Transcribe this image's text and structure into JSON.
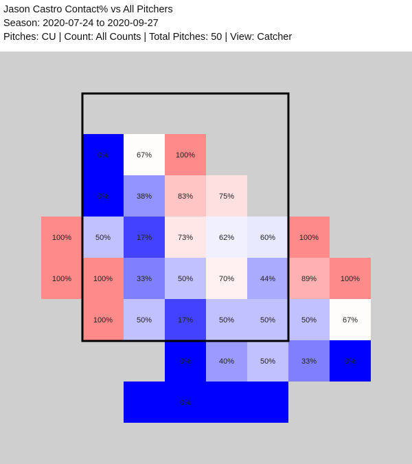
{
  "header": {
    "title": "Jason Castro Contact% vs All Pitchers",
    "season": "Season: 2020-07-24 to 2020-09-27",
    "filters": "Pitches: CU | Count: All Counts | Total Pitches: 50 | View: Catcher"
  },
  "colors": {
    "background": "#cfcfcf",
    "low": "#0000ff",
    "mid": "#ffffff",
    "high": "#ff8a8a",
    "strike_zone": "#000000"
  },
  "chart_data": {
    "type": "heatmap",
    "metric": "Contact%",
    "color_scale": "blue (low) - white - red (high)",
    "strike_zone": {
      "col_range": [
        1,
        6
      ],
      "row_range": [
        0,
        6
      ]
    },
    "cells": [
      {
        "row": 1,
        "col": 1,
        "value": 0,
        "label": "0%"
      },
      {
        "row": 1,
        "col": 2,
        "value": 67,
        "label": "67%"
      },
      {
        "row": 1,
        "col": 3,
        "value": 100,
        "label": "100%"
      },
      {
        "row": 2,
        "col": 1,
        "value": 0,
        "label": "0%"
      },
      {
        "row": 2,
        "col": 2,
        "value": 38,
        "label": "38%"
      },
      {
        "row": 2,
        "col": 3,
        "value": 83,
        "label": "83%"
      },
      {
        "row": 2,
        "col": 4,
        "value": 75,
        "label": "75%"
      },
      {
        "row": 3,
        "col": 0,
        "value": 100,
        "label": "100%"
      },
      {
        "row": 3,
        "col": 1,
        "value": 50,
        "label": "50%"
      },
      {
        "row": 3,
        "col": 2,
        "value": 17,
        "label": "17%"
      },
      {
        "row": 3,
        "col": 3,
        "value": 73,
        "label": "73%"
      },
      {
        "row": 3,
        "col": 4,
        "value": 62,
        "label": "62%"
      },
      {
        "row": 3,
        "col": 5,
        "value": 60,
        "label": "60%"
      },
      {
        "row": 3,
        "col": 6,
        "value": 100,
        "label": "100%"
      },
      {
        "row": 4,
        "col": 0,
        "value": 100,
        "label": "100%"
      },
      {
        "row": 4,
        "col": 1,
        "value": 100,
        "label": "100%"
      },
      {
        "row": 4,
        "col": 2,
        "value": 33,
        "label": "33%"
      },
      {
        "row": 4,
        "col": 3,
        "value": 50,
        "label": "50%"
      },
      {
        "row": 4,
        "col": 4,
        "value": 70,
        "label": "70%"
      },
      {
        "row": 4,
        "col": 5,
        "value": 44,
        "label": "44%"
      },
      {
        "row": 4,
        "col": 6,
        "value": 89,
        "label": "89%"
      },
      {
        "row": 4,
        "col": 7,
        "value": 100,
        "label": "100%"
      },
      {
        "row": 5,
        "col": 1,
        "value": 100,
        "label": "100%"
      },
      {
        "row": 5,
        "col": 2,
        "value": 50,
        "label": "50%"
      },
      {
        "row": 5,
        "col": 3,
        "value": 17,
        "label": "17%"
      },
      {
        "row": 5,
        "col": 4,
        "value": 50,
        "label": "50%"
      },
      {
        "row": 5,
        "col": 5,
        "value": 50,
        "label": "50%"
      },
      {
        "row": 5,
        "col": 6,
        "value": 50,
        "label": "50%"
      },
      {
        "row": 5,
        "col": 7,
        "value": 67,
        "label": "67%"
      },
      {
        "row": 6,
        "col": 3,
        "value": 0,
        "label": "0%"
      },
      {
        "row": 6,
        "col": 4,
        "value": 40,
        "label": "40%"
      },
      {
        "row": 6,
        "col": 5,
        "value": 50,
        "label": "50%"
      },
      {
        "row": 6,
        "col": 6,
        "value": 33,
        "label": "33%"
      },
      {
        "row": 6,
        "col": 7,
        "value": 0,
        "label": "0%"
      },
      {
        "row": 7,
        "col": 2,
        "value": 0,
        "label": ""
      },
      {
        "row": 7,
        "col": 3,
        "value": 0,
        "label": "0%"
      },
      {
        "row": 7,
        "col": 4,
        "value": 0,
        "label": ""
      },
      {
        "row": 7,
        "col": 5,
        "value": 0,
        "label": ""
      }
    ]
  }
}
